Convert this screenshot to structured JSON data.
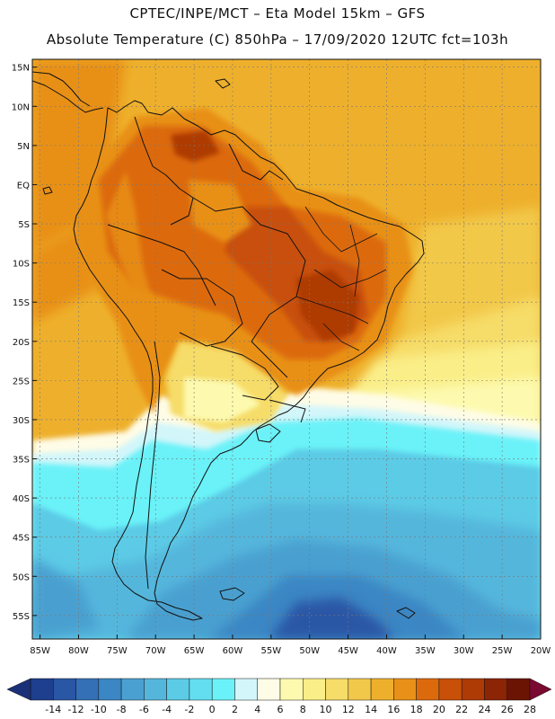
{
  "header": {
    "line1": "CPTEC/INPE/MCT –   Eta Model 15km – GFS",
    "line2": "Absolute Temperature (C) 850hPa – 17/09/2020 12UTC fct=103h"
  },
  "map": {
    "lat_labels": [
      "15N",
      "10N",
      "5N",
      "EQ",
      "5S",
      "10S",
      "15S",
      "20S",
      "25S",
      "30S",
      "35S",
      "40S",
      "45S",
      "50S",
      "55S"
    ],
    "lon_labels": [
      "85W",
      "80W",
      "75W",
      "70W",
      "65W",
      "60W",
      "55W",
      "50W",
      "45W",
      "40W",
      "35W",
      "30W",
      "25W",
      "20W"
    ],
    "lon_range": [
      -86,
      -20
    ],
    "lat_range": [
      -58,
      16
    ]
  },
  "colorbar": {
    "levels": [
      "-14",
      "-12",
      "-10",
      "-8",
      "-6",
      "-4",
      "-2",
      "0",
      "2",
      "4",
      "6",
      "8",
      "10",
      "12",
      "14",
      "16",
      "18",
      "20",
      "22",
      "24",
      "26",
      "28"
    ],
    "colors": [
      "#1e3e8e",
      "#2a56a6",
      "#3470b6",
      "#3b86c4",
      "#4aa0d0",
      "#55b6dc",
      "#5ccbe6",
      "#62def0",
      "#6bf2f8",
      "#d2f6fa",
      "#fefce6",
      "#fdfab0",
      "#faee88",
      "#f6dc68",
      "#f2c84a",
      "#eeb02c",
      "#e89018",
      "#dc6a0c",
      "#c85008",
      "#ae3a06",
      "#8c2406",
      "#6c1404"
    ],
    "low_end_color": "#1a3178",
    "high_end_color": "#7a0a30"
  }
}
